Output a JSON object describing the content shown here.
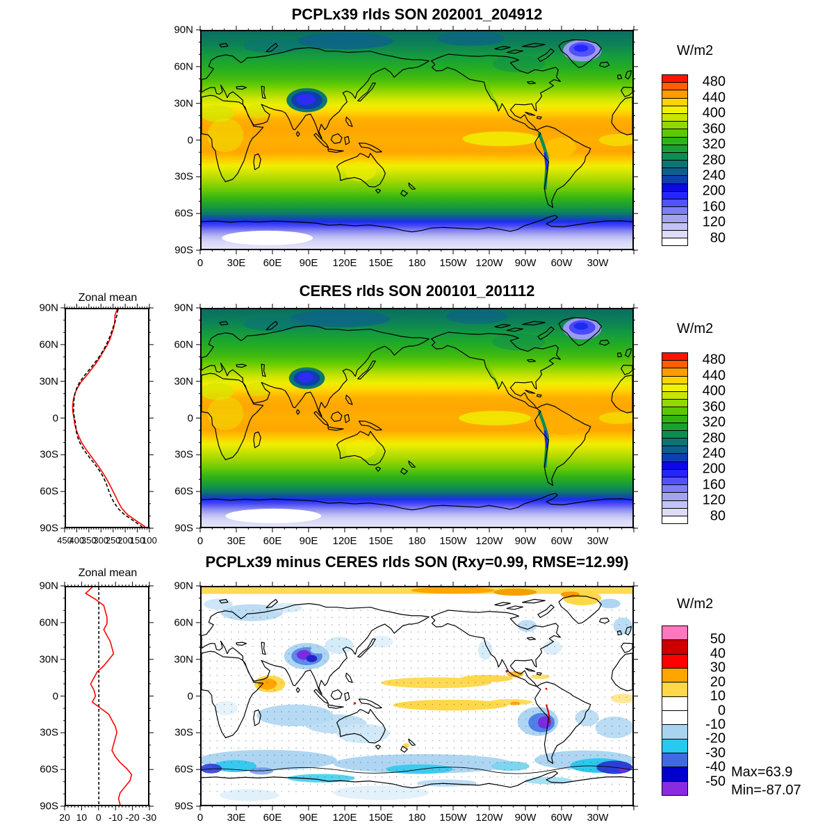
{
  "figure": {
    "background": "#ffffff"
  },
  "panels": {
    "p1": {
      "title": "PCPLx39 rlds SON 202001_204912",
      "unit": "W/m2"
    },
    "p2": {
      "title": "CERES rlds SON 200101_201112",
      "unit": "W/m2"
    },
    "p3": {
      "title": "PCPLx39 minus CERES rlds SON (Rxy=0.99, RMSE=12.99)",
      "unit": "W/m2",
      "max_label": "Max=63.9",
      "min_label": "Min=-87.07"
    },
    "zonal1": {
      "title": "Zonal mean"
    },
    "zonal2": {
      "title": "Zonal mean"
    }
  },
  "axes": {
    "map_x": {
      "labels": [
        "0",
        "30E",
        "60E",
        "90E",
        "120E",
        "150E",
        "180",
        "150W",
        "120W",
        "90W",
        "60W",
        "30W"
      ],
      "denom": 12
    },
    "map_y": {
      "labels": [
        "90N",
        "60N",
        "30N",
        "0",
        "30S",
        "60S",
        "90S"
      ],
      "denom": 6
    },
    "zonal1_x": {
      "labels": [
        "450",
        "400",
        "350",
        "300",
        "250",
        "200",
        "150",
        "100"
      ],
      "denom": 7
    },
    "zonal2_x": {
      "labels": [
        "20",
        "10",
        "0",
        "-10",
        "-20",
        "-30"
      ],
      "denom": 5
    }
  },
  "colorbars": {
    "cb1": {
      "unit": "W/m2",
      "every": 2,
      "labels": [
        "480",
        "440",
        "400",
        "360",
        "320",
        "280",
        "240",
        "200",
        "160",
        "120",
        "80"
      ],
      "colors_top_to_bottom": [
        "#ff1400",
        "#ff5f00",
        "#ff9c00",
        "#ffd300",
        "#f2f200",
        "#c8e600",
        "#92d800",
        "#5cc800",
        "#2eb414",
        "#18a032",
        "#0f8c52",
        "#0c7572",
        "#0d5f90",
        "#0d3fae",
        "#0a0ae8",
        "#2525ff",
        "#5252fa",
        "#7e7ef6",
        "#a3a3f0",
        "#c2c2f6",
        "#dcdcfa",
        "#ffffff"
      ]
    },
    "cb2": {
      "unit": "W/m2",
      "every": 1,
      "labels": [
        "50",
        "40",
        "30",
        "20",
        "10",
        "0",
        "-10",
        "-20",
        "-30",
        "-40",
        "-50"
      ],
      "colors_top_to_bottom": [
        "#ff77be",
        "#cc0000",
        "#ff0000",
        "#ffa500",
        "#ffd84a",
        "#ffffff",
        "#ffffff",
        "#a8d4f0",
        "#28c8f0",
        "#4169e1",
        "#0000cd",
        "#8a2be2"
      ]
    }
  },
  "chart_data": [
    {
      "id": "map_model_rlds",
      "type": "heatmap",
      "title": "PCPLx39 rlds SON 202001_204912",
      "units": "W/m2",
      "x_range_deg": [
        0,
        360
      ],
      "y_range_deg": [
        -90,
        90
      ],
      "x_tick_labels": [
        "0",
        "30E",
        "60E",
        "90E",
        "120E",
        "150E",
        "180",
        "150W",
        "120W",
        "90W",
        "60W",
        "30W"
      ],
      "y_tick_labels": [
        "90N",
        "60N",
        "30N",
        "0",
        "30S",
        "60S",
        "90S"
      ],
      "contour_levels": [
        80,
        100,
        120,
        140,
        160,
        180,
        200,
        220,
        240,
        260,
        280,
        300,
        320,
        340,
        360,
        380,
        400,
        420,
        440,
        460,
        480
      ],
      "palette_low_to_high": [
        "#ffffff",
        "#dcdcfa",
        "#c2c2f6",
        "#a3a3f0",
        "#7e7ef6",
        "#5252fa",
        "#2525ff",
        "#0a0ae8",
        "#0d3fae",
        "#0d5f90",
        "#0c7572",
        "#0f8c52",
        "#18a032",
        "#2eb414",
        "#5cc800",
        "#92d800",
        "#c8e600",
        "#f2f200",
        "#ffd300",
        "#ff9c00",
        "#ff5f00",
        "#ff1400"
      ]
    },
    {
      "id": "map_obs_rlds",
      "type": "heatmap",
      "title": "CERES rlds SON 200101_201112",
      "units": "W/m2",
      "x_range_deg": [
        0,
        360
      ],
      "y_range_deg": [
        -90,
        90
      ],
      "x_tick_labels": [
        "0",
        "30E",
        "60E",
        "90E",
        "120E",
        "150E",
        "180",
        "150W",
        "120W",
        "90W",
        "60W",
        "30W"
      ],
      "y_tick_labels": [
        "90N",
        "60N",
        "30N",
        "0",
        "30S",
        "60S",
        "90S"
      ],
      "contour_levels": [
        80,
        100,
        120,
        140,
        160,
        180,
        200,
        220,
        240,
        260,
        280,
        300,
        320,
        340,
        360,
        380,
        400,
        420,
        440,
        460,
        480
      ],
      "palette_low_to_high": [
        "#ffffff",
        "#dcdcfa",
        "#c2c2f6",
        "#a3a3f0",
        "#7e7ef6",
        "#5252fa",
        "#2525ff",
        "#0a0ae8",
        "#0d3fae",
        "#0d5f90",
        "#0c7572",
        "#0f8c52",
        "#18a032",
        "#2eb414",
        "#5cc800",
        "#92d800",
        "#c8e600",
        "#f2f200",
        "#ffd300",
        "#ff9c00",
        "#ff5f00",
        "#ff1400"
      ]
    },
    {
      "id": "map_diff",
      "type": "heatmap",
      "title": "PCPLx39 minus CERES rlds SON (Rxy=0.99, RMSE=12.99)",
      "units": "W/m2",
      "stats": {
        "rxy": 0.99,
        "rmse": 12.99,
        "max": 63.9,
        "min": -87.07
      },
      "x_range_deg": [
        0,
        360
      ],
      "y_range_deg": [
        -90,
        90
      ],
      "x_tick_labels": [
        "0",
        "30E",
        "60E",
        "90E",
        "120E",
        "150E",
        "180",
        "150W",
        "120W",
        "90W",
        "60W",
        "30W"
      ],
      "y_tick_labels": [
        "90N",
        "60N",
        "30N",
        "0",
        "30S",
        "60S",
        "90S"
      ],
      "contour_levels": [
        -50,
        -40,
        -30,
        -20,
        -10,
        0,
        10,
        20,
        30,
        40,
        50
      ],
      "palette_low_to_high": [
        "#8a2be2",
        "#0000cd",
        "#4169e1",
        "#28c8f0",
        "#a8d4f0",
        "#ffffff",
        "#ffffff",
        "#ffd84a",
        "#ffa500",
        "#ff0000",
        "#cc0000",
        "#ff77be"
      ]
    },
    {
      "id": "zonal_mean_rlds",
      "type": "line",
      "title": "Zonal mean",
      "xlim_left_to_right": [
        450,
        100
      ],
      "ylim_top_to_bottom": [
        90,
        -90
      ],
      "x_tick_labels": [
        "450",
        "400",
        "350",
        "300",
        "250",
        "200",
        "150",
        "100"
      ],
      "y_tick_labels": [
        "90N",
        "60N",
        "30N",
        "0",
        "30S",
        "60S",
        "90S"
      ],
      "latitudes": [
        90,
        85,
        80,
        75,
        70,
        65,
        60,
        55,
        50,
        45,
        40,
        35,
        30,
        25,
        20,
        15,
        10,
        5,
        0,
        -5,
        -10,
        -15,
        -20,
        -25,
        -30,
        -35,
        -40,
        -45,
        -50,
        -55,
        -60,
        -65,
        -70,
        -75,
        -80,
        -85,
        -90
      ],
      "series": [
        {
          "name": "PCPLx39",
          "color": "#ff0000",
          "style": "solid",
          "values": [
            232,
            241,
            242,
            246,
            254,
            263,
            275,
            291,
            306,
            323,
            343,
            363,
            385,
            401,
            413,
            419,
            422,
            421,
            416,
            413,
            406,
            396,
            384,
            368,
            349,
            330,
            311,
            294,
            278,
            264,
            251,
            238,
            226,
            211,
            187,
            150,
            112
          ]
        },
        {
          "name": "CERES",
          "color": "#000000",
          "style": "dashed",
          "values": [
            228,
            233,
            240,
            249,
            258,
            268,
            280,
            294,
            311,
            330,
            351,
            372,
            391,
            404,
            412,
            416,
            417,
            418,
            414,
            409,
            407,
            402,
            392,
            378,
            360,
            340,
            320,
            302,
            288,
            277,
            268,
            258,
            245,
            227,
            200,
            162,
            125
          ]
        }
      ]
    },
    {
      "id": "zonal_mean_diff",
      "type": "line",
      "title": "Zonal mean",
      "xlim_left_to_right": [
        20,
        -30
      ],
      "ylim_top_to_bottom": [
        90,
        -90
      ],
      "x_tick_labels": [
        "20",
        "10",
        "0",
        "-10",
        "-20",
        "-30"
      ],
      "y_tick_labels": [
        "90N",
        "60N",
        "30N",
        "0",
        "30S",
        "60S",
        "90S"
      ],
      "latitudes": [
        90,
        85,
        80,
        75,
        70,
        65,
        60,
        55,
        50,
        45,
        40,
        35,
        30,
        25,
        20,
        15,
        10,
        5,
        0,
        -5,
        -10,
        -15,
        -20,
        -25,
        -30,
        -35,
        -40,
        -45,
        -50,
        -55,
        -60,
        -65,
        -70,
        -75,
        -80,
        -85,
        -90
      ],
      "series": [
        {
          "name": "PCPLx39 minus CERES",
          "color": "#ff0000",
          "style": "solid",
          "values": [
            4,
            8,
            2,
            -3,
            -4,
            -5,
            -5,
            -3,
            -5,
            -7,
            -8,
            -9,
            -6,
            -3,
            1,
            3,
            5,
            3,
            2,
            4,
            -1,
            -6,
            -8,
            -10,
            -11,
            -10,
            -9,
            -8,
            -10,
            -13,
            -17,
            -20,
            -19,
            -16,
            -13,
            -12,
            -13
          ]
        }
      ],
      "ref_line": {
        "value": 0,
        "style": "dashed",
        "color": "#000000"
      }
    }
  ]
}
